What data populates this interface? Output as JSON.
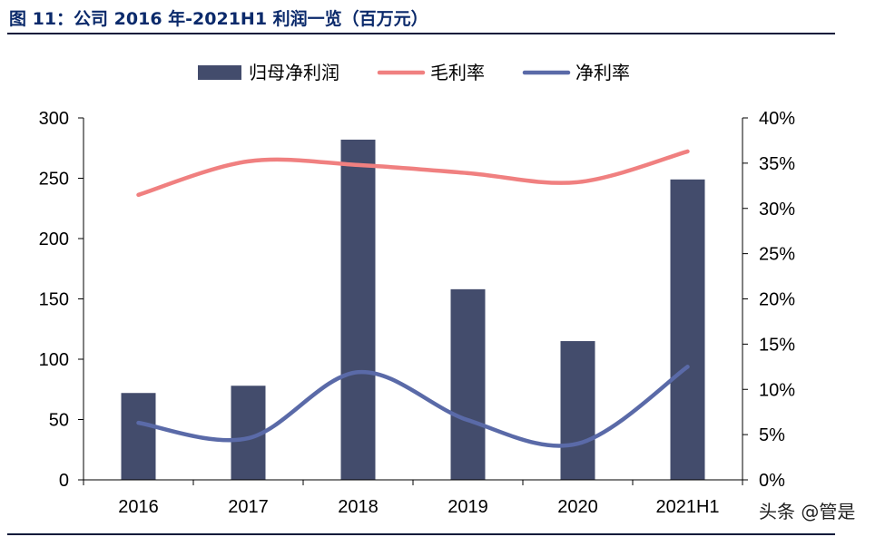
{
  "title": "图 11：公司 2016 年-2021H1 利润一览（百万元）",
  "watermark": "头条 @管是",
  "chart_data": {
    "type": "bar",
    "categories": [
      "2016",
      "2017",
      "2018",
      "2019",
      "2020",
      "2021H1"
    ],
    "series": [
      {
        "name": "归母净利润",
        "type": "bar",
        "axis": "left",
        "color": "#434c6c",
        "values": [
          72,
          78,
          282,
          158,
          115,
          249
        ]
      },
      {
        "name": "毛利率",
        "type": "line",
        "axis": "right",
        "color": "#f08080",
        "values": [
          31.5,
          35.2,
          34.8,
          33.9,
          32.9,
          36.3
        ]
      },
      {
        "name": "净利率",
        "type": "line",
        "axis": "right",
        "color": "#5a6aa8",
        "values": [
          6.3,
          4.6,
          11.9,
          6.6,
          4.0,
          12.5
        ]
      }
    ],
    "y_left": {
      "ylim": [
        0,
        300
      ],
      "ticks": [
        "0",
        "50",
        "100",
        "150",
        "200",
        "250",
        "300"
      ]
    },
    "y_right": {
      "ylim": [
        0,
        40
      ],
      "ticks": [
        "0%",
        "5%",
        "10%",
        "15%",
        "20%",
        "25%",
        "30%",
        "35%",
        "40%"
      ]
    },
    "legend": "top-center",
    "grid": false
  }
}
